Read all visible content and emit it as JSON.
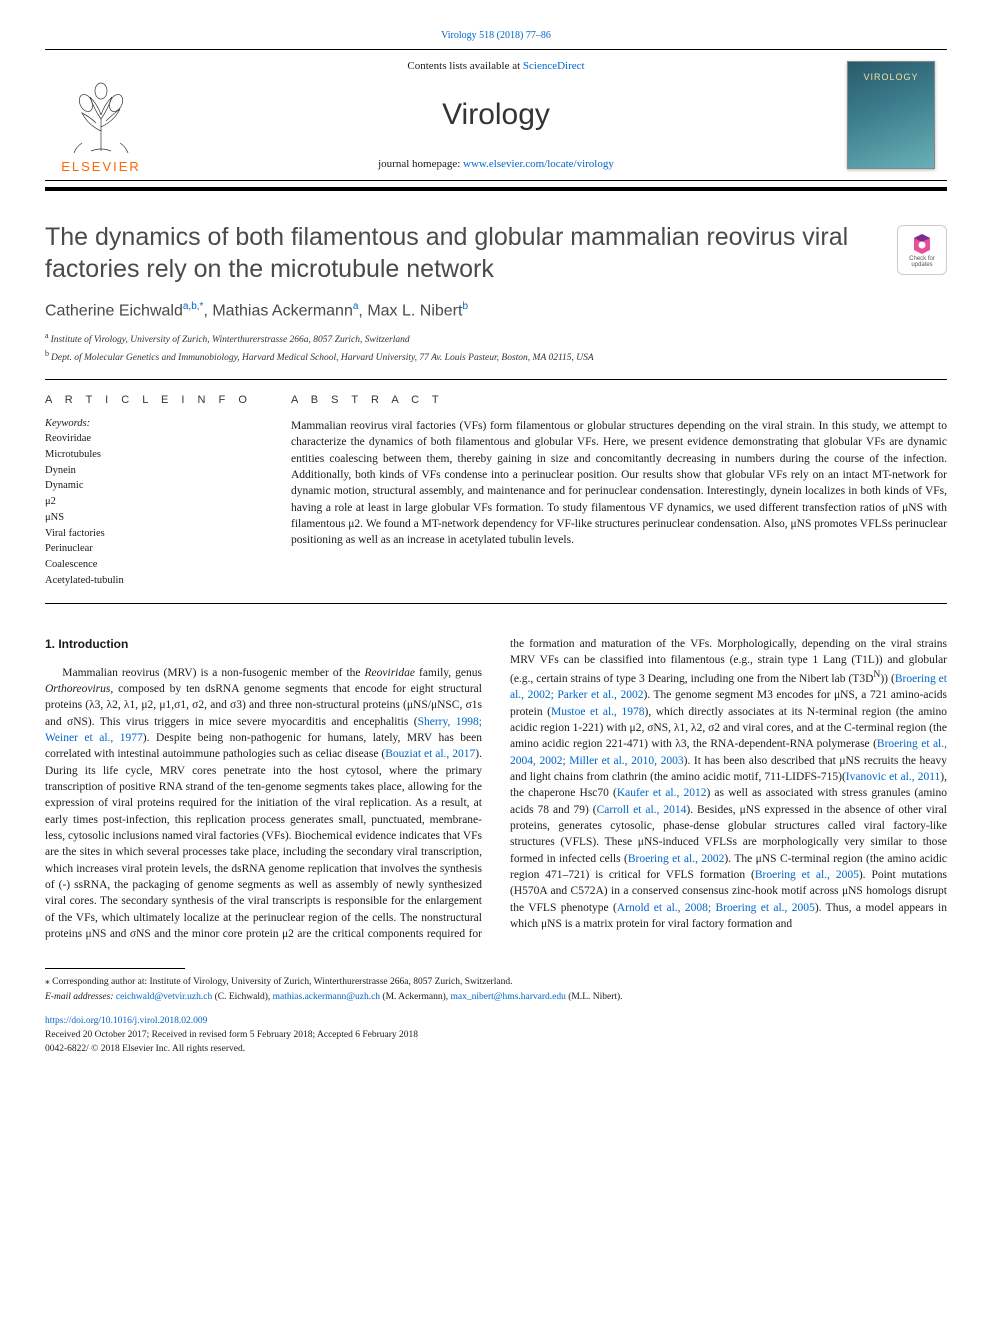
{
  "top_ref": "Virology 518 (2018) 77–86",
  "masthead": {
    "contents_pre": "Contents lists available at ",
    "contents_link": "ScienceDirect",
    "journal": "Virology",
    "homepage_pre": "journal homepage: ",
    "homepage_link": "www.elsevier.com/locate/virology",
    "publisher_word": "ELSEVIER",
    "cover_word": "VIROLOGY"
  },
  "updates_badge": {
    "line1": "Check for",
    "line2": "updates"
  },
  "title": "The dynamics of both filamentous and globular mammalian reovirus viral factories rely on the microtubule network",
  "authors_html": "Catherine Eichwald",
  "authors": [
    {
      "name": "Catherine Eichwald",
      "sup": "a,b,*"
    },
    {
      "name": "Mathias Ackermann",
      "sup": "a"
    },
    {
      "name": "Max L. Nibert",
      "sup": "b"
    }
  ],
  "affiliations": [
    {
      "sup": "a",
      "text": "Institute of Virology, University of Zurich, Winterthurerstrasse 266a, 8057 Zurich, Switzerland"
    },
    {
      "sup": "b",
      "text": "Dept. of Molecular Genetics and Immunobiology, Harvard Medical School, Harvard University, 77 Av. Louis Pasteur, Boston, MA 02115, USA"
    }
  ],
  "info_head": "A R T I C L E  I N F O",
  "abs_head": "A B S T R A C T",
  "keywords_label": "Keywords:",
  "keywords": [
    "Reoviridae",
    "Microtubules",
    "Dynein",
    "Dynamic",
    "μ2",
    "μNS",
    "Viral factories",
    "Perinuclear",
    "Coalescence",
    "Acetylated-tubulin"
  ],
  "abstract": "Mammalian reovirus viral factories (VFs) form filamentous or globular structures depending on the viral strain. In this study, we attempt to characterize the dynamics of both filamentous and globular VFs. Here, we present evidence demonstrating that globular VFs are dynamic entities coalescing between them, thereby gaining in size and concomitantly decreasing in numbers during the course of the infection. Additionally, both kinds of VFs condense into a perinuclear position. Our results show that globular VFs rely on an intact MT-network for dynamic motion, structural assembly, and maintenance and for perinuclear condensation. Interestingly, dynein localizes in both kinds of VFs, having a role at least in large globular VFs formation. To study filamentous VF dynamics, we used different transfection ratios of μNS with filamentous μ2. We found a MT-network dependency for VF-like structures perinuclear condensation. Also, μNS promotes VFLSs perinuclear positioning as well as an increase in acetylated tubulin levels.",
  "intro_head": "1. Introduction",
  "intro_p1_a": "Mammalian reovirus (MRV) is a non-fusogenic member of the ",
  "intro_p1_b": "Reoviridae",
  "intro_p1_c": " family, genus ",
  "intro_p1_d": "Orthoreovirus,",
  "intro_p1_e": " composed by ten dsRNA genome segments that encode for eight structural proteins (λ3, λ2, λ1, μ2, μ1,σ1, σ2, and σ3) and three non-structural proteins (μNS/μNSC, σ1s and σNS). This virus triggers in mice severe myocarditis and encephalitis (",
  "intro_cite1": "Sherry, 1998; Weiner et al., 1977",
  "intro_p1_f": "). Despite being non-pathogenic for humans, lately, MRV has been correlated with intestinal autoimmune pathologies such as celiac disease (",
  "intro_cite2": "Bouziat et al., 2017",
  "intro_p1_g": "). During its life cycle, MRV cores penetrate into the host cytosol, where the primary transcription of positive RNA strand of the ten-genome segments takes place, allowing for the expression of viral proteins required for the initiation of the viral replication. As a result, at early times post-infection, this replication process generates small, punctuated, membrane-less, cytosolic inclusions named viral factories (VFs). Biochemical evidence indicates that VFs are the sites in which several processes take place, including the secondary viral transcription, which increases viral protein levels, the dsRNA genome replication that involves the synthesis of (-) ssRNA, the packaging of genome segments as well as assembly of newly synthesized viral cores. The secondary synthesis of the viral transcripts is responsible for the enlargement of the VFs, which ultimately localize at the perinuclear region of the cells. The nonstructural proteins μNS and σNS and the minor core protein μ2 ",
  "intro_p2_a": "are the critical components required for the formation and maturation of the VFs. Morphologically, depending on the viral strains MRV VFs can be classified into filamentous (e.g., strain type 1 Lang (T1L)) and globular (e.g., certain strains of type 3 Dearing, including one from the Nibert lab (T3D",
  "intro_p2_sup": "N",
  "intro_p2_b": ")) (",
  "intro_cite3": "Broering et al., 2002; Parker et al., 2002",
  "intro_p2_c": "). The genome segment M3 encodes for μNS, a 721 amino-acids protein (",
  "intro_cite4": "Mustoe et al., 1978",
  "intro_p2_d": "), which directly associates at its N-terminal region (the amino acidic region 1-221) with μ2, σNS, λ1, λ2, σ2 and viral cores, and at the C-terminal region (the amino acidic region 221-471) with λ3, the RNA-dependent-RNA polymerase (",
  "intro_cite5": "Broering et al., 2004, 2002; Miller et al., 2010, 2003",
  "intro_p2_e": "). It has been also described that μNS recruits the heavy and light chains from clathrin (the amino acidic motif, 711-LIDFS-715)(",
  "intro_cite6": "Ivanovic et al., 2011",
  "intro_p2_f": "), the chaperone Hsc70 (",
  "intro_cite7": "Kaufer et al., 2012",
  "intro_p2_g": ") as well as associated with stress granules (amino acids 78 and 79) (",
  "intro_cite8": "Carroll et al., 2014",
  "intro_p2_h": "). Besides, μNS expressed in the absence of other viral proteins, generates cytosolic, phase-dense globular structures called viral factory-like structures (VFLS). These μNS-induced VFLSs are morphologically very similar to those formed in infected cells (",
  "intro_cite9": "Broering et al., 2002",
  "intro_p2_i": "). The μNS C-terminal region (the amino acidic region 471–721) is critical for VFLS formation (",
  "intro_cite10": "Broering et al., 2005",
  "intro_p2_j": "). Point mutations (H570A and C572A) in a conserved consensus zinc-hook motif across μNS homologs disrupt the VFLS phenotype (",
  "intro_cite11": "Arnold et al., 2008; Broering et al., 2005",
  "intro_p2_k": "). Thus, a model appears in which μNS is a matrix protein for viral factory formation and",
  "footnotes": {
    "corr": "⁎ Corresponding author at: Institute of Virology, University of Zurich, Winterthurerstrasse 266a, 8057 Zurich, Switzerland.",
    "email_label": "E-mail addresses: ",
    "emails": [
      {
        "addr": "ceichwald@vetvir.uzh.ch",
        "who": " (C. Eichwald), "
      },
      {
        "addr": "mathias.ackermann@uzh.ch",
        "who": " (M. Ackermann), "
      },
      {
        "addr": "max_nibert@hms.harvard.edu",
        "who": " (M.L. Nibert)."
      }
    ]
  },
  "doi": {
    "link": "https://doi.org/10.1016/j.virol.2018.02.009",
    "received": "Received 20 October 2017; Received in revised form 5 February 2018; Accepted 6 February 2018",
    "copyright": "0042-6822/ © 2018 Elsevier Inc. All rights reserved."
  },
  "colors": {
    "link": "#0066cc",
    "elsevier": "#ff6600",
    "heading_gray": "#4a4a4a"
  }
}
